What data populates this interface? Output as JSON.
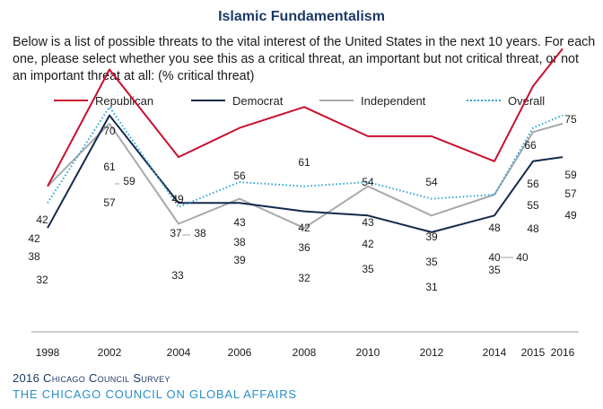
{
  "header": {
    "title": "Islamic Fundamentalism",
    "subtitle": "Below is a list of possible threats to the vital interest of the United States in the next 10 years. For each one, please select whether you see this as a critical threat, an important but not critical threat, or not an important threat at all: (% critical threat)"
  },
  "footer": {
    "survey": "2016 Chicago Council Survey",
    "org": "THE CHICAGO COUNCIL ON GLOBAL AFFAIRS"
  },
  "chart_data": {
    "type": "line",
    "title": "Islamic Fundamentalism",
    "x": [
      "1998",
      "2002",
      "2004",
      "2006",
      "2008",
      "2010",
      "2012",
      "2014",
      "2015",
      "2016"
    ],
    "ylim": [
      25,
      80
    ],
    "grid": false,
    "legend_position": "top",
    "series": [
      {
        "name": "Republican",
        "color": "#c8102e",
        "style": "solid",
        "values": [
          42,
          70,
          49,
          56,
          61,
          54,
          54,
          48,
          66,
          75
        ]
      },
      {
        "name": "Democrat",
        "color": "#13294b",
        "style": "solid",
        "values": [
          32,
          59,
          38,
          38,
          36,
          35,
          31,
          35,
          48,
          49
        ]
      },
      {
        "name": "Independent",
        "color": "#a7a9ac",
        "style": "solid",
        "values": [
          42,
          57,
          33,
          39,
          32,
          42,
          35,
          40,
          55,
          57
        ]
      },
      {
        "name": "Overall",
        "color": "#2fa3d6",
        "style": "dotted",
        "values": [
          38,
          61,
          37,
          43,
          42,
          43,
          39,
          40,
          56,
          59
        ]
      }
    ]
  }
}
